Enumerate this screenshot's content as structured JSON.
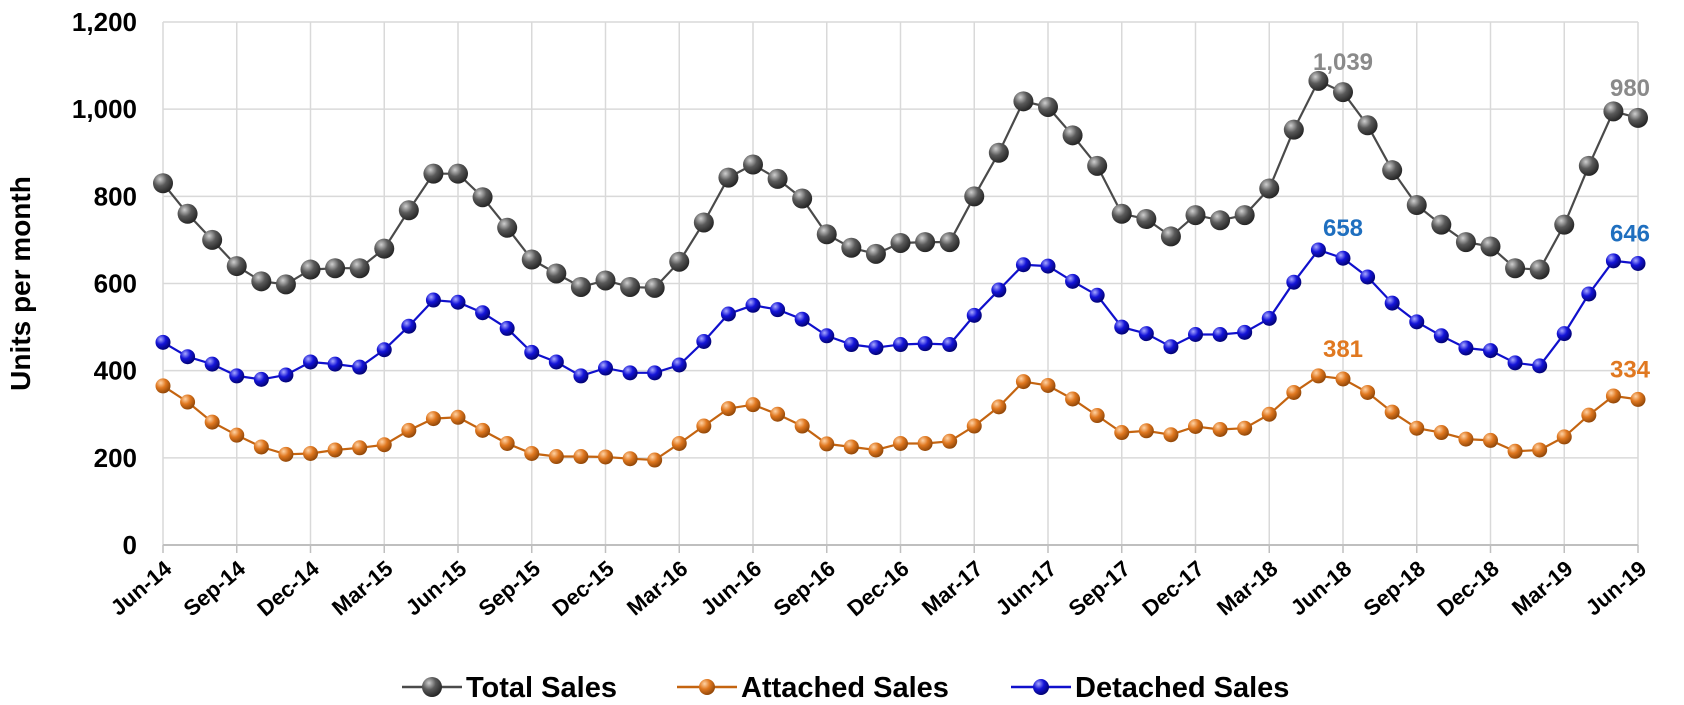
{
  "chart_data": {
    "type": "line",
    "ylabel": "Units per month",
    "xlabel": "",
    "ylim": [
      0,
      1200
    ],
    "y_ticks": [
      "0",
      "200",
      "400",
      "600",
      "800",
      "1,000",
      "1,200"
    ],
    "x_tick_labels": [
      "Jun-14",
      "Sep-14",
      "Dec-14",
      "Mar-15",
      "Jun-15",
      "Sep-15",
      "Dec-15",
      "Mar-16",
      "Jun-16",
      "Sep-16",
      "Dec-16",
      "Mar-17",
      "Jun-17",
      "Sep-17",
      "Dec-17",
      "Mar-18",
      "Jun-18",
      "Sep-18",
      "Dec-18",
      "Mar-19",
      "Jun-19"
    ],
    "grid": true,
    "legend": "bottom",
    "series": [
      {
        "name": "Total Sales",
        "color": "#555555",
        "values": [
          830,
          760,
          700,
          640,
          605,
          598,
          632,
          635,
          635,
          680,
          768,
          852,
          852,
          798,
          728,
          655,
          623,
          592,
          607,
          592,
          590,
          650,
          740,
          843,
          873,
          840,
          795,
          713,
          682,
          668,
          693,
          695,
          695,
          800,
          900,
          1018,
          1005,
          940,
          870,
          760,
          748,
          708,
          757,
          745,
          757,
          818,
          953,
          1065,
          1039,
          963,
          860,
          780,
          735,
          695,
          685,
          635,
          632,
          735,
          870,
          995,
          980
        ]
      },
      {
        "name": "Attached Sales",
        "color": "#e07820",
        "values": [
          365,
          328,
          282,
          252,
          225,
          208,
          210,
          218,
          223,
          230,
          263,
          290,
          293,
          263,
          233,
          210,
          203,
          203,
          202,
          198,
          195,
          233,
          273,
          313,
          322,
          300,
          273,
          232,
          225,
          218,
          233,
          233,
          238,
          273,
          317,
          375,
          366,
          335,
          297,
          258,
          262,
          253,
          272,
          265,
          268,
          300,
          350,
          388,
          381,
          350,
          305,
          268,
          258,
          243,
          240,
          215,
          218,
          248,
          298,
          342,
          334
        ]
      },
      {
        "name": "Detached Sales",
        "color": "#1010cc",
        "values": [
          465,
          432,
          415,
          388,
          380,
          390,
          420,
          415,
          408,
          448,
          502,
          562,
          557,
          533,
          497,
          442,
          420,
          388,
          406,
          395,
          395,
          413,
          467,
          530,
          550,
          540,
          518,
          480,
          460,
          453,
          460,
          462,
          460,
          527,
          585,
          643,
          640,
          605,
          573,
          500,
          485,
          455,
          483,
          483,
          488,
          520,
          603,
          677,
          658,
          615,
          555,
          512,
          480,
          452,
          446,
          418,
          411,
          485,
          576,
          652,
          646
        ]
      }
    ],
    "annotations": [
      {
        "series": "Total Sales",
        "label": "1,039",
        "color": "#8a8a8a",
        "index": 48
      },
      {
        "series": "Total Sales",
        "label": "980",
        "color": "#8a8a8a",
        "index": 60
      },
      {
        "series": "Detached Sales",
        "label": "658",
        "color": "#1f6fbf",
        "index": 48
      },
      {
        "series": "Detached Sales",
        "label": "646",
        "color": "#1f6fbf",
        "index": 60
      },
      {
        "series": "Attached Sales",
        "label": "381",
        "color": "#e07820",
        "index": 48
      },
      {
        "series": "Attached Sales",
        "label": "334",
        "color": "#e07820",
        "index": 60
      }
    ]
  }
}
